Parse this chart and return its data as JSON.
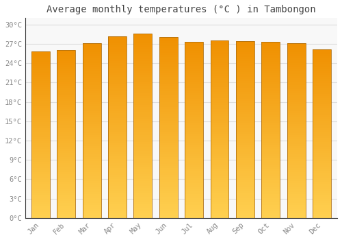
{
  "title": "Average monthly temperatures (°C ) in Tambongon",
  "months": [
    "Jan",
    "Feb",
    "Mar",
    "Apr",
    "May",
    "Jun",
    "Jul",
    "Aug",
    "Sep",
    "Oct",
    "Nov",
    "Dec"
  ],
  "values": [
    25.8,
    26.0,
    27.1,
    28.2,
    28.6,
    28.1,
    27.3,
    27.5,
    27.4,
    27.3,
    27.1,
    26.1
  ],
  "bar_color_left": "#E88000",
  "bar_color_center": "#FFB020",
  "bar_color_right": "#FFC840",
  "bar_edge_color": "#B07010",
  "yticks": [
    0,
    3,
    6,
    9,
    12,
    15,
    18,
    21,
    24,
    27,
    30
  ],
  "ytick_labels": [
    "0°C",
    "3°C",
    "6°C",
    "9°C",
    "12°C",
    "15°C",
    "18°C",
    "21°C",
    "24°C",
    "27°C",
    "30°C"
  ],
  "ylim": [
    0,
    31
  ],
  "background_color": "#FFFFFF",
  "plot_bg_color": "#F8F8F8",
  "grid_color": "#DDDDDD",
  "title_fontsize": 10,
  "tick_fontsize": 7.5,
  "title_color": "#444444",
  "tick_color": "#888888"
}
